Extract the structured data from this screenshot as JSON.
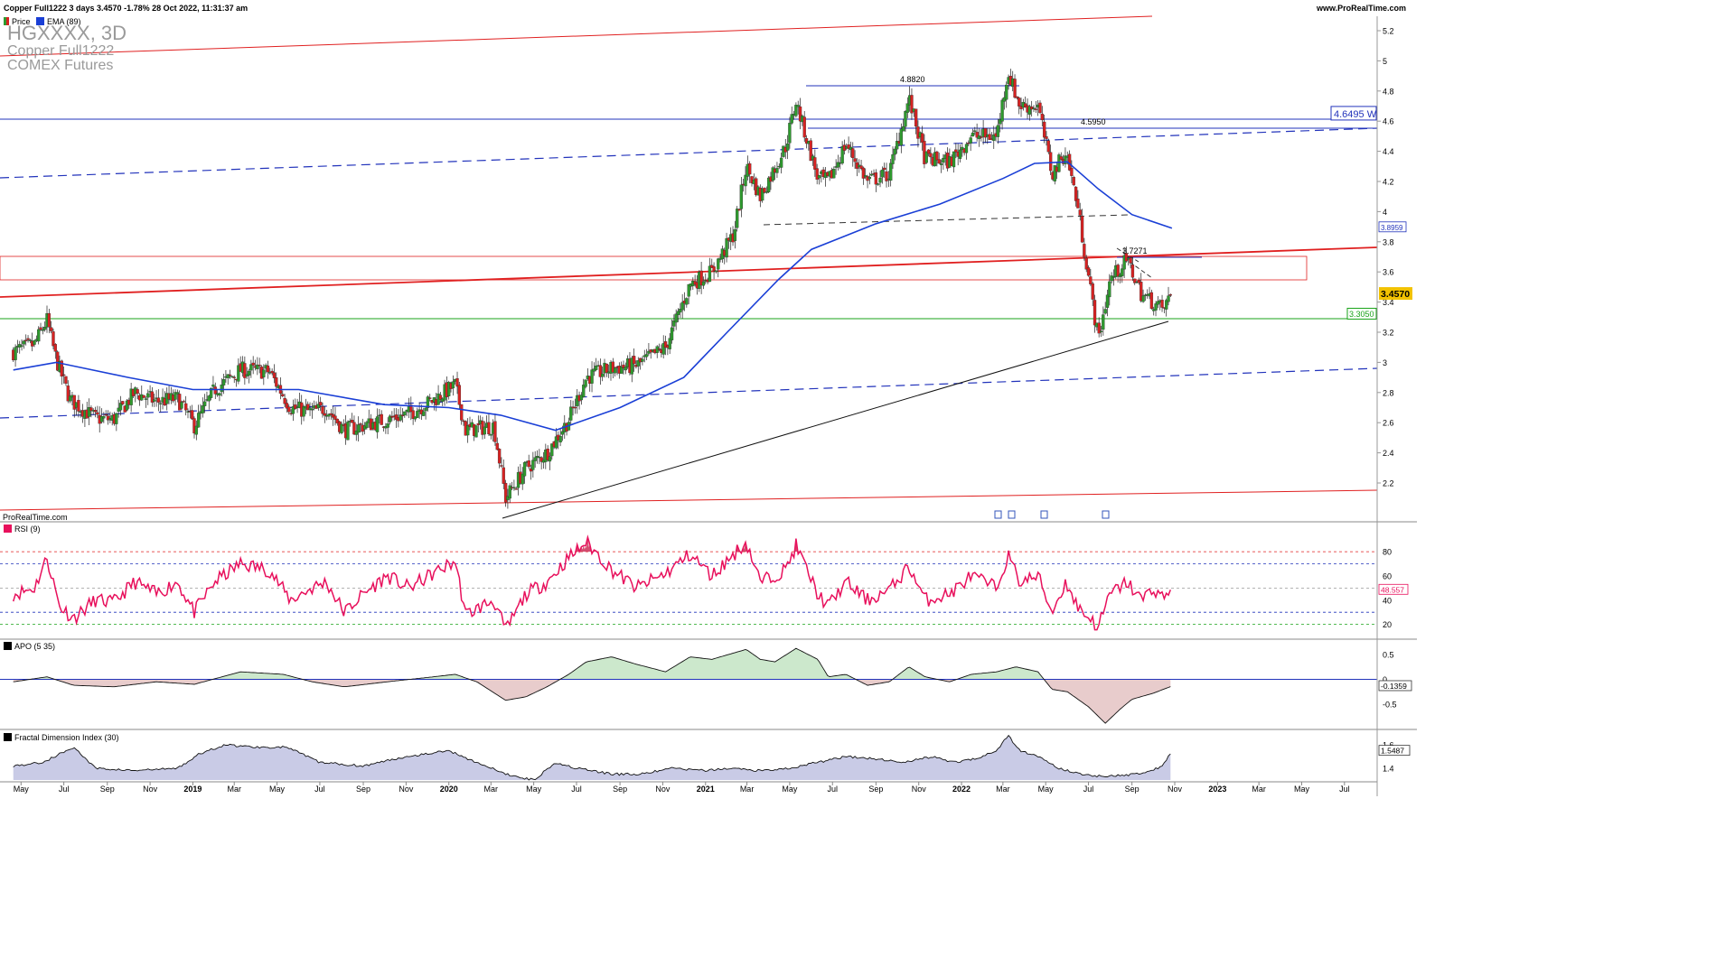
{
  "header": {
    "info": "Copper Full1222 3 days 3.4570 -1.78% 28 Oct 2022, 11:31:37 am",
    "site": "www.ProRealTime.com"
  },
  "legend": {
    "price": "Price",
    "ema": "EMA (89)"
  },
  "watermark": {
    "symbol": "HGXXXX, 3D",
    "name": "Copper Full1222",
    "exchange": "COMEX Futures"
  },
  "footer_credit": "ProRealTime.com",
  "colors": {
    "up": "#2e9a2e",
    "down": "#d62222",
    "ema": "#1a3fd6",
    "rsi": "#e8105c",
    "red_line": "#e02020",
    "green_line": "#19a319",
    "blue_dash": "#2233bb",
    "apo_pos_fill": "#cce8cc",
    "apo_neg_fill": "#e8cccc",
    "fdi_fill": "#c9cbe6"
  },
  "chart_data": [
    {
      "type": "candlestick",
      "title": "Copper Full1222, 3 days",
      "ylim": [
        2.0,
        5.3
      ],
      "y_ticks": [
        "5.2",
        "5",
        "4.8",
        "4.6",
        "4.4",
        "4.2",
        "4",
        "3.8",
        "3.6",
        "3.4",
        "3.2",
        "3",
        "2.8",
        "2.6",
        "2.4",
        "2.2"
      ],
      "x_ticks": [
        "May",
        "Jul",
        "Sep",
        "Nov",
        "2019",
        "Mar",
        "May",
        "Jul",
        "Sep",
        "Nov",
        "2020",
        "Mar",
        "May",
        "Jul",
        "Sep",
        "Nov",
        "2021",
        "Mar",
        "May",
        "Jul",
        "Sep",
        "Nov",
        "2022",
        "Mar",
        "May",
        "Jul",
        "Sep",
        "Nov",
        "2023",
        "Mar",
        "May",
        "Jul"
      ],
      "close_path": [
        [
          "2018-04-20",
          3.07
        ],
        [
          "2018-05-20",
          3.12
        ],
        [
          "2018-06-07",
          3.28
        ],
        [
          "2018-06-20",
          3.02
        ],
        [
          "2018-07-10",
          2.75
        ],
        [
          "2018-08-15",
          2.63
        ],
        [
          "2018-09-10",
          2.62
        ],
        [
          "2018-10-10",
          2.8
        ],
        [
          "2018-11-10",
          2.74
        ],
        [
          "2018-12-10",
          2.76
        ],
        [
          "2019-01-03",
          2.58
        ],
        [
          "2019-02-01",
          2.82
        ],
        [
          "2019-03-10",
          2.95
        ],
        [
          "2019-04-20",
          2.94
        ],
        [
          "2019-05-20",
          2.7
        ],
        [
          "2019-06-20",
          2.67
        ],
        [
          "2019-07-10",
          2.7
        ],
        [
          "2019-08-05",
          2.55
        ],
        [
          "2019-09-01",
          2.58
        ],
        [
          "2019-10-05",
          2.62
        ],
        [
          "2019-11-05",
          2.66
        ],
        [
          "2019-12-10",
          2.75
        ],
        [
          "2020-01-10",
          2.85
        ],
        [
          "2020-01-25",
          2.55
        ],
        [
          "2020-03-05",
          2.58
        ],
        [
          "2020-03-22",
          2.1
        ],
        [
          "2020-04-20",
          2.3
        ],
        [
          "2020-05-20",
          2.4
        ],
        [
          "2020-06-20",
          2.62
        ],
        [
          "2020-07-15",
          2.9
        ],
        [
          "2020-08-20",
          2.96
        ],
        [
          "2020-09-25",
          2.98
        ],
        [
          "2020-11-05",
          3.1
        ],
        [
          "2020-12-10",
          3.52
        ],
        [
          "2021-01-10",
          3.6
        ],
        [
          "2021-02-10",
          3.85
        ],
        [
          "2021-02-28",
          4.3
        ],
        [
          "2021-03-20",
          4.1
        ],
        [
          "2021-04-25",
          4.43
        ],
        [
          "2021-05-10",
          4.73
        ],
        [
          "2021-06-10",
          4.22
        ],
        [
          "2021-06-25",
          4.2
        ],
        [
          "2021-07-20",
          4.45
        ],
        [
          "2021-08-20",
          4.2
        ],
        [
          "2021-09-20",
          4.25
        ],
        [
          "2021-10-18",
          4.75
        ],
        [
          "2021-11-10",
          4.35
        ],
        [
          "2021-12-15",
          4.33
        ],
        [
          "2022-01-15",
          4.5
        ],
        [
          "2022-02-20",
          4.5
        ],
        [
          "2022-03-08",
          4.93
        ],
        [
          "2022-03-25",
          4.7
        ],
        [
          "2022-04-20",
          4.7
        ],
        [
          "2022-05-10",
          4.25
        ],
        [
          "2022-05-30",
          4.4
        ],
        [
          "2022-06-15",
          4.05
        ],
        [
          "2022-07-05",
          3.45
        ],
        [
          "2022-07-15",
          3.15
        ],
        [
          "2022-08-01",
          3.55
        ],
        [
          "2022-08-25",
          3.68
        ],
        [
          "2022-09-15",
          3.45
        ],
        [
          "2022-10-01",
          3.4
        ],
        [
          "2022-10-15",
          3.35
        ],
        [
          "2022-10-28",
          3.457
        ]
      ],
      "ema_89_path": [
        [
          "2018-04-20",
          2.95
        ],
        [
          "2018-06-20",
          3.0
        ],
        [
          "2018-10-01",
          2.9
        ],
        [
          "2019-01-01",
          2.82
        ],
        [
          "2019-06-01",
          2.82
        ],
        [
          "2019-10-01",
          2.72
        ],
        [
          "2020-01-01",
          2.7
        ],
        [
          "2020-03-15",
          2.65
        ],
        [
          "2020-06-01",
          2.55
        ],
        [
          "2020-09-01",
          2.7
        ],
        [
          "2020-12-01",
          2.9
        ],
        [
          "2021-02-01",
          3.2
        ],
        [
          "2021-04-15",
          3.55
        ],
        [
          "2021-06-01",
          3.75
        ],
        [
          "2021-09-01",
          3.92
        ],
        [
          "2021-12-01",
          4.05
        ],
        [
          "2022-03-01",
          4.22
        ],
        [
          "2022-04-15",
          4.32
        ],
        [
          "2022-06-01",
          4.33
        ],
        [
          "2022-07-15",
          4.15
        ],
        [
          "2022-09-01",
          3.98
        ],
        [
          "2022-10-28",
          3.89
        ]
      ],
      "horizontal_levels": [
        {
          "label": "4.8820",
          "value": 4.882,
          "color": "blue"
        },
        {
          "label": "4.5950",
          "value": 4.595,
          "color": "blue"
        },
        {
          "label": "4.6495 W",
          "value": 4.6495,
          "color": "blue"
        },
        {
          "label": "3.7271",
          "value": 3.7271,
          "color": "black"
        },
        {
          "label": "3.3050",
          "value": 3.305,
          "color": "green"
        }
      ],
      "price_badges": [
        {
          "label": "3.8959",
          "value": 3.8959
        },
        {
          "label": "3.4570",
          "value": 3.457
        }
      ]
    },
    {
      "type": "line",
      "title": "RSI (9)",
      "ylim": [
        10,
        95
      ],
      "y_ticks": [
        "80",
        "60",
        "40",
        "20"
      ],
      "levels": [
        80,
        70,
        50,
        30,
        20
      ],
      "last_label": "48.557",
      "path": [
        [
          "2018-04-20",
          45
        ],
        [
          "2018-05-20",
          50
        ],
        [
          "2018-06-07",
          75
        ],
        [
          "2018-06-25",
          35
        ],
        [
          "2018-07-15",
          25
        ],
        [
          "2018-08-15",
          40
        ],
        [
          "2018-09-10",
          38
        ],
        [
          "2018-10-10",
          55
        ],
        [
          "2018-11-10",
          45
        ],
        [
          "2018-12-10",
          55
        ],
        [
          "2019-01-03",
          30
        ],
        [
          "2019-02-01",
          55
        ],
        [
          "2019-03-10",
          70
        ],
        [
          "2019-04-20",
          65
        ],
        [
          "2019-05-20",
          40
        ],
        [
          "2019-06-20",
          50
        ],
        [
          "2019-07-10",
          55
        ],
        [
          "2019-08-05",
          30
        ],
        [
          "2019-09-01",
          45
        ],
        [
          "2019-10-05",
          60
        ],
        [
          "2019-11-05",
          50
        ],
        [
          "2019-12-10",
          62
        ],
        [
          "2020-01-10",
          72
        ],
        [
          "2020-01-25",
          28
        ],
        [
          "2020-03-05",
          40
        ],
        [
          "2020-03-22",
          15
        ],
        [
          "2020-04-20",
          45
        ],
        [
          "2020-05-20",
          55
        ],
        [
          "2020-06-20",
          75
        ],
        [
          "2020-07-15",
          88
        ],
        [
          "2020-08-20",
          65
        ],
        [
          "2020-09-25",
          50
        ],
        [
          "2020-11-05",
          62
        ],
        [
          "2020-12-10",
          78
        ],
        [
          "2021-01-10",
          60
        ],
        [
          "2021-02-28",
          88
        ],
        [
          "2021-03-20",
          55
        ],
        [
          "2021-04-25",
          65
        ],
        [
          "2021-05-10",
          85
        ],
        [
          "2021-06-10",
          45
        ],
        [
          "2021-06-25",
          35
        ],
        [
          "2021-07-20",
          55
        ],
        [
          "2021-08-20",
          40
        ],
        [
          "2021-09-20",
          48
        ],
        [
          "2021-10-18",
          68
        ],
        [
          "2021-11-10",
          40
        ],
        [
          "2021-12-15",
          45
        ],
        [
          "2022-01-15",
          60
        ],
        [
          "2022-02-20",
          50
        ],
        [
          "2022-03-08",
          77
        ],
        [
          "2022-03-25",
          55
        ],
        [
          "2022-04-20",
          60
        ],
        [
          "2022-05-10",
          30
        ],
        [
          "2022-05-30",
          55
        ],
        [
          "2022-06-15",
          35
        ],
        [
          "2022-07-15",
          18
        ],
        [
          "2022-08-01",
          45
        ],
        [
          "2022-08-25",
          55
        ],
        [
          "2022-09-15",
          40
        ],
        [
          "2022-10-01",
          50
        ],
        [
          "2022-10-15",
          42
        ],
        [
          "2022-10-28",
          48.557
        ]
      ]
    },
    {
      "type": "area",
      "title": "APO (5 35)",
      "ylim": [
        -0.95,
        0.75
      ],
      "y_ticks": [
        "0.5",
        "0",
        "-0.5"
      ],
      "last_label": "-0.1359",
      "path": [
        [
          "2018-04-20",
          -0.05
        ],
        [
          "2018-06-07",
          0.05
        ],
        [
          "2018-07-15",
          -0.12
        ],
        [
          "2018-09-10",
          -0.15
        ],
        [
          "2018-11-10",
          -0.05
        ],
        [
          "2019-01-03",
          -0.1
        ],
        [
          "2019-03-10",
          0.15
        ],
        [
          "2019-05-10",
          0.1
        ],
        [
          "2019-06-20",
          -0.05
        ],
        [
          "2019-08-05",
          -0.15
        ],
        [
          "2019-10-05",
          -0.05
        ],
        [
          "2019-12-10",
          0.05
        ],
        [
          "2020-01-10",
          0.1
        ],
        [
          "2020-02-10",
          -0.05
        ],
        [
          "2020-03-22",
          -0.42
        ],
        [
          "2020-04-20",
          -0.35
        ],
        [
          "2020-05-20",
          -0.15
        ],
        [
          "2020-06-20",
          0.1
        ],
        [
          "2020-07-15",
          0.35
        ],
        [
          "2020-08-20",
          0.45
        ],
        [
          "2020-09-25",
          0.3
        ],
        [
          "2020-11-05",
          0.15
        ],
        [
          "2020-12-10",
          0.45
        ],
        [
          "2021-01-10",
          0.4
        ],
        [
          "2021-02-28",
          0.6
        ],
        [
          "2021-03-20",
          0.4
        ],
        [
          "2021-04-10",
          0.35
        ],
        [
          "2021-05-10",
          0.62
        ],
        [
          "2021-06-10",
          0.4
        ],
        [
          "2021-06-25",
          0.05
        ],
        [
          "2021-07-20",
          0.1
        ],
        [
          "2021-08-20",
          -0.12
        ],
        [
          "2021-09-20",
          -0.05
        ],
        [
          "2021-10-18",
          0.25
        ],
        [
          "2021-11-10",
          0.05
        ],
        [
          "2021-12-15",
          -0.05
        ],
        [
          "2022-01-15",
          0.1
        ],
        [
          "2022-02-20",
          0.15
        ],
        [
          "2022-03-20",
          0.25
        ],
        [
          "2022-04-20",
          0.15
        ],
        [
          "2022-05-10",
          -0.2
        ],
        [
          "2022-06-01",
          -0.25
        ],
        [
          "2022-07-01",
          -0.55
        ],
        [
          "2022-07-25",
          -0.88
        ],
        [
          "2022-08-15",
          -0.6
        ],
        [
          "2022-09-01",
          -0.4
        ],
        [
          "2022-10-01",
          -0.28
        ],
        [
          "2022-10-28",
          -0.1359
        ]
      ]
    },
    {
      "type": "area",
      "title": "Fractal Dimension Index (30)",
      "ylim": [
        1.3,
        1.7
      ],
      "y_ticks": [
        "1.6",
        "1.4"
      ],
      "last_label": "1.5487",
      "path": [
        [
          "2018-04-20",
          1.42
        ],
        [
          "2018-06-01",
          1.45
        ],
        [
          "2018-07-15",
          1.58
        ],
        [
          "2018-08-15",
          1.4
        ],
        [
          "2018-10-10",
          1.38
        ],
        [
          "2018-12-10",
          1.4
        ],
        [
          "2019-01-10",
          1.52
        ],
        [
          "2019-02-15",
          1.6
        ],
        [
          "2019-04-01",
          1.58
        ],
        [
          "2019-05-15",
          1.58
        ],
        [
          "2019-07-01",
          1.45
        ],
        [
          "2019-09-01",
          1.42
        ],
        [
          "2019-11-01",
          1.5
        ],
        [
          "2020-01-01",
          1.55
        ],
        [
          "2020-02-10",
          1.45
        ],
        [
          "2020-03-22",
          1.35
        ],
        [
          "2020-05-01",
          1.3
        ],
        [
          "2020-06-01",
          1.45
        ],
        [
          "2020-07-01",
          1.4
        ],
        [
          "2020-08-20",
          1.35
        ],
        [
          "2020-10-01",
          1.35
        ],
        [
          "2020-11-15",
          1.4
        ],
        [
          "2021-01-01",
          1.38
        ],
        [
          "2021-02-10",
          1.4
        ],
        [
          "2021-03-20",
          1.38
        ],
        [
          "2021-05-01",
          1.4
        ],
        [
          "2021-06-10",
          1.45
        ],
        [
          "2021-07-20",
          1.5
        ],
        [
          "2021-09-01",
          1.48
        ],
        [
          "2021-10-10",
          1.45
        ],
        [
          "2021-11-20",
          1.5
        ],
        [
          "2021-12-20",
          1.45
        ],
        [
          "2022-01-20",
          1.48
        ],
        [
          "2022-02-20",
          1.55
        ],
        [
          "2022-03-08",
          1.68
        ],
        [
          "2022-03-25",
          1.55
        ],
        [
          "2022-04-20",
          1.5
        ],
        [
          "2022-05-20",
          1.4
        ],
        [
          "2022-06-20",
          1.35
        ],
        [
          "2022-07-20",
          1.33
        ],
        [
          "2022-08-20",
          1.34
        ],
        [
          "2022-09-20",
          1.36
        ],
        [
          "2022-10-15",
          1.42
        ],
        [
          "2022-10-28",
          1.5487
        ]
      ]
    }
  ]
}
